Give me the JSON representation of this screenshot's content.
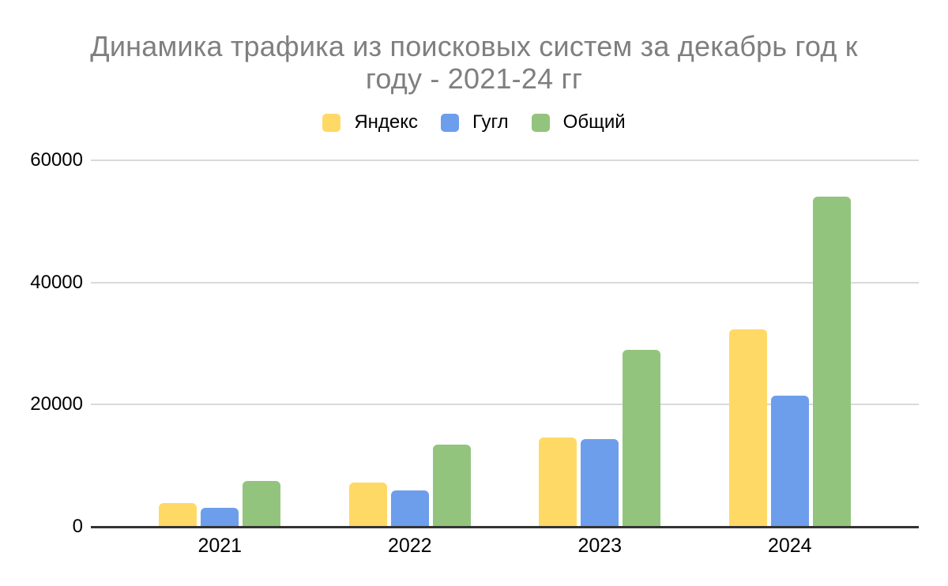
{
  "chart_data": {
    "type": "bar",
    "title": "Динамика трафика из поисковых систем за декабрь год к году - 2021-24 гг",
    "title_lines": [
      "Динамика трафика из поисковых систем за декабрь год к",
      "году - 2021-24 гг"
    ],
    "categories": [
      "2021",
      "2022",
      "2023",
      "2024"
    ],
    "series": [
      {
        "name": "Яндекс",
        "key": "yandex",
        "color": "#FFD966",
        "values": [
          3900,
          7200,
          14600,
          32300
        ]
      },
      {
        "name": "Гугл",
        "key": "google",
        "color": "#6D9EEB",
        "values": [
          3100,
          5900,
          14400,
          21500
        ]
      },
      {
        "name": "Общий",
        "key": "total",
        "color": "#93C47D",
        "values": [
          7500,
          13400,
          29000,
          54000
        ]
      }
    ],
    "xlabel": "",
    "ylabel": "",
    "ylim": [
      0,
      60000
    ],
    "yticks": [
      0,
      20000,
      40000,
      60000
    ],
    "grid": true,
    "legend_position": "top",
    "colors": {
      "grid_line": "#D9D9D9",
      "axis_line": "#333333",
      "axis_text": "#000000",
      "title_text": "#7F7F7F"
    }
  }
}
